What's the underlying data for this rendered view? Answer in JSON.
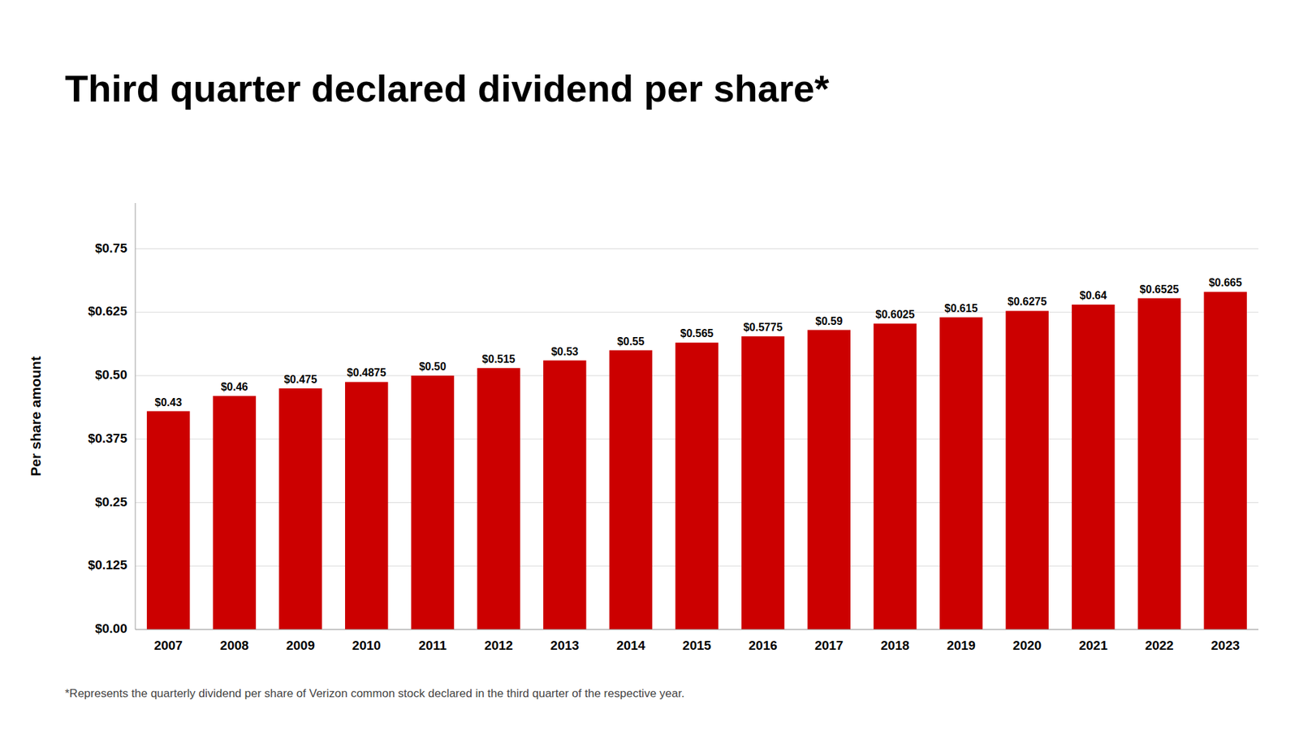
{
  "chart_data": {
    "type": "bar",
    "title": "Third quarter declared dividend per share*",
    "ylabel": "Per share amount",
    "footnote": "*Represents the quarterly dividend per share of Verizon common stock declared in the third quarter of the respective year.",
    "categories": [
      "2007",
      "2008",
      "2009",
      "2010",
      "2011",
      "2012",
      "2013",
      "2014",
      "2015",
      "2016",
      "2017",
      "2018",
      "2019",
      "2020",
      "2021",
      "2022",
      "2023"
    ],
    "values": [
      0.43,
      0.46,
      0.475,
      0.4875,
      0.5,
      0.515,
      0.53,
      0.55,
      0.565,
      0.5775,
      0.59,
      0.6025,
      0.615,
      0.6275,
      0.64,
      0.6525,
      0.665
    ],
    "value_labels": [
      "$0.43",
      "$0.46",
      "$0.475",
      "$0.4875",
      "$0.50",
      "$0.515",
      "$0.53",
      "$0.55",
      "$0.565",
      "$0.5775",
      "$0.59",
      "$0.6025",
      "$0.615",
      "$0.6275",
      "$0.64",
      "$0.6525",
      "$0.665"
    ],
    "data_labels": true,
    "color": "#CC0000",
    "ylim": [
      0,
      0.84
    ],
    "yticks": [
      {
        "value": 0.0,
        "label": "$0.00"
      },
      {
        "value": 0.125,
        "label": "$0.125"
      },
      {
        "value": 0.25,
        "label": "$0.25"
      },
      {
        "value": 0.375,
        "label": "$0.375"
      },
      {
        "value": 0.5,
        "label": "$0.50"
      },
      {
        "value": 0.625,
        "label": "$0.625"
      },
      {
        "value": 0.75,
        "label": "$0.75"
      }
    ],
    "grid": true
  }
}
